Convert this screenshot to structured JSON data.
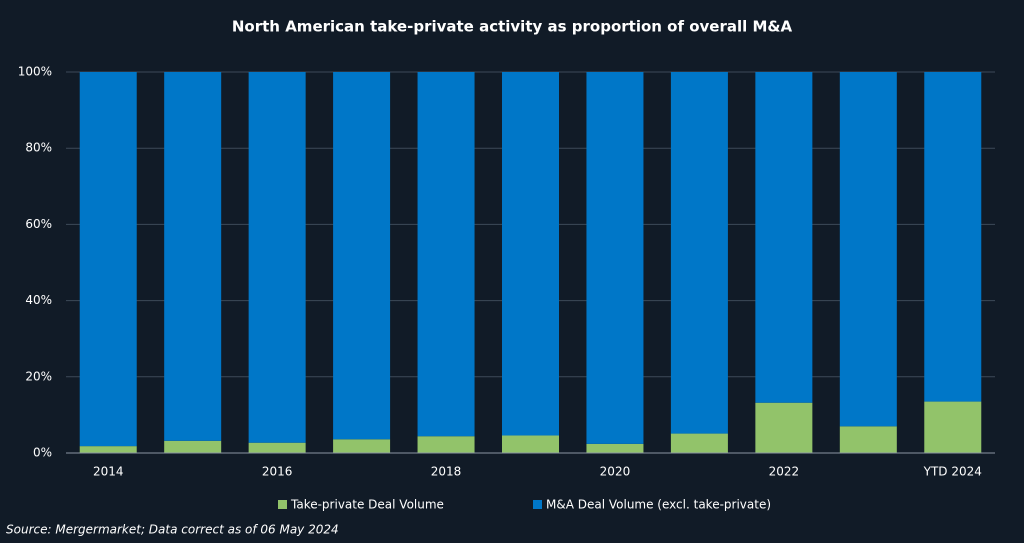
{
  "chart_data": {
    "type": "stacked_bar",
    "title": "North American take-private activity as proportion of overall M&A",
    "categories": [
      "2014",
      null,
      "2016",
      null,
      "2018",
      null,
      "2020",
      null,
      "2022",
      null,
      "YTD 2024"
    ],
    "series": [
      {
        "name": "Take-private Deal Volume",
        "color": "#92c36a",
        "values": [
          1.8,
          3.2,
          2.7,
          3.6,
          4.4,
          4.6,
          2.4,
          5.1,
          13.2,
          7.0,
          13.5
        ]
      },
      {
        "name": "M&A Deal Volume (excl. take-private)",
        "color": "#0077c8",
        "values": [
          98.2,
          96.8,
          97.3,
          96.4,
          95.6,
          95.4,
          97.6,
          94.9,
          86.8,
          93.0,
          86.5
        ]
      }
    ],
    "ylim": [
      0,
      100
    ],
    "yticks": [
      {
        "value": 0,
        "label": "0%"
      },
      {
        "value": 20,
        "label": "20%"
      },
      {
        "value": 40,
        "label": "40%"
      },
      {
        "value": 60,
        "label": "60%"
      },
      {
        "value": 80,
        "label": "80%"
      },
      {
        "value": 100,
        "label": "100%"
      }
    ],
    "grid": true,
    "legend": "bottom",
    "source": "Source: Mergermarket; Data correct as of 06 May 2024"
  }
}
